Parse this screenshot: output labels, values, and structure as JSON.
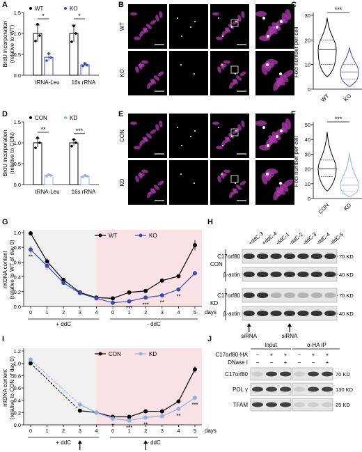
{
  "panel_letters": [
    "A",
    "B",
    "C",
    "D",
    "E",
    "F",
    "G",
    "H",
    "I",
    "J"
  ],
  "colors": {
    "black": "#000000",
    "blue": "#3a49b3",
    "lightblue": "#8fb0e6",
    "magenta": "#b03ab0",
    "yellow": "#d9c21a",
    "grey_bg": "#f0f0f0",
    "pink_bg": "#f8e2e6"
  },
  "chart_data": [
    {
      "id": "A",
      "type": "bar",
      "ylabel": "BrdU incorporation\n(relative to WT)",
      "categories": [
        "tRNA-Leu",
        "16s rRNA"
      ],
      "ylim": [
        0,
        1.5
      ],
      "yticks": [
        "0.0",
        "0.5",
        "1.0",
        "1.5"
      ],
      "series": [
        {
          "name": "WT",
          "values": [
            1.0,
            1.0
          ],
          "errors": [
            0.2,
            0.2
          ],
          "points": [
            [
              0.82,
              1.22,
              0.95
            ],
            [
              0.8,
              1.18,
              1.0
            ]
          ]
        },
        {
          "name": "KO",
          "values": [
            0.43,
            0.25
          ],
          "errors": [
            0.08,
            0.04
          ],
          "points": [
            [
              0.35,
              0.52,
              0.42
            ],
            [
              0.22,
              0.28,
              0.24
            ]
          ]
        }
      ],
      "significance": [
        "*",
        "*"
      ]
    },
    {
      "id": "C",
      "type": "violin",
      "ylabel": "Foci number per cell",
      "categories": [
        "WT",
        "KO"
      ],
      "ylim": [
        0,
        30
      ],
      "yticks": [
        "0",
        "10",
        "20",
        "30"
      ],
      "medians": [
        16,
        7
      ],
      "q1": [
        10,
        4
      ],
      "q3": [
        20,
        10
      ],
      "max": [
        29,
        17
      ],
      "min": [
        5,
        1
      ],
      "significance": "***"
    },
    {
      "id": "D",
      "type": "bar",
      "ylabel": "BrdU incorporation\n(relative to CON)",
      "categories": [
        "tRNA-Leu",
        "16s rRNA"
      ],
      "ylim": [
        0,
        1.5
      ],
      "yticks": [
        "0.0",
        "0.5",
        "1.0",
        "1.5"
      ],
      "series": [
        {
          "name": "CON",
          "values": [
            1.0,
            1.0
          ],
          "errors": [
            0.1,
            0.07
          ],
          "points": [
            [
              0.88,
              1.12,
              1.0
            ],
            [
              0.92,
              1.08,
              1.0
            ]
          ]
        },
        {
          "name": "KD",
          "values": [
            0.22,
            0.2
          ],
          "errors": [
            0.02,
            0.02
          ],
          "points": [
            [
              0.2,
              0.24,
              0.22
            ],
            [
              0.18,
              0.22,
              0.2
            ]
          ]
        }
      ],
      "significance": [
        "**",
        "***"
      ]
    },
    {
      "id": "F",
      "type": "violin",
      "ylabel": "Foci number per cell",
      "categories": [
        "CON",
        "KD"
      ],
      "ylim": [
        0,
        50
      ],
      "yticks": [
        "0",
        "10",
        "20",
        "30",
        "40",
        "50"
      ],
      "medians": [
        20,
        9
      ],
      "q1": [
        15,
        5
      ],
      "q3": [
        26,
        14
      ],
      "max": [
        45,
        31
      ],
      "min": [
        5,
        1
      ],
      "significance": "***"
    },
    {
      "id": "G",
      "type": "line",
      "ylabel": "mtDNA content\n(relative to WT of day 0)",
      "x": [
        "0",
        "1",
        "2",
        "3",
        "4",
        "0",
        "1",
        "2",
        "3",
        "4",
        "5"
      ],
      "xlabel": "days",
      "ylim": [
        0,
        1.0
      ],
      "yticks": [
        "0.0",
        "0.2",
        "0.4",
        "0.6",
        "0.8",
        "1.0"
      ],
      "series": [
        {
          "name": "WT",
          "values": [
            0.99,
            0.61,
            0.36,
            0.19,
            0.12,
            0.11,
            0.19,
            0.21,
            0.35,
            0.41,
            0.83
          ],
          "errors": [
            0,
            0.04,
            0.02,
            0.02,
            0.01,
            0.01,
            0.02,
            0.01,
            0.02,
            0.02,
            0.07
          ]
        },
        {
          "name": "KO",
          "values": [
            0.77,
            0.55,
            0.32,
            0.18,
            0.11,
            0.05,
            0.07,
            0.12,
            0.15,
            0.23,
            0.45
          ],
          "errors": [
            0.05,
            0.05,
            0.02,
            0.02,
            0.01,
            0.01,
            0.01,
            0.01,
            0.01,
            0.02,
            0.03
          ]
        }
      ],
      "significance": [
        "**",
        "",
        "",
        "",
        "",
        "",
        "***",
        "***",
        "**",
        "**"
      ],
      "regions": [
        "+ ddC",
        "- ddC"
      ]
    },
    {
      "id": "I",
      "type": "line",
      "ylabel": "mtDNA content\n(relative to CON of day 0)",
      "x": [
        "0",
        "1",
        "2",
        "3",
        "4",
        "0",
        "1",
        "2",
        "3",
        "4",
        "5"
      ],
      "xlabel": "days",
      "ylim": [
        0,
        1.2
      ],
      "yticks": [
        "0.0",
        "0.2",
        "0.4",
        "0.6",
        "0.8",
        "1.0",
        "1.2"
      ],
      "series": [
        {
          "name": "CON",
          "values": [
            1.0,
            0.0,
            0.0,
            0.23,
            0.2,
            0.13,
            0.13,
            0.22,
            0.22,
            0.38,
            0.9
          ],
          "errors": [
            0.03,
            0,
            0,
            0.02,
            0.01,
            0.01,
            0.01,
            0.02,
            0.01,
            0.02,
            0.05
          ]
        },
        {
          "name": "KD",
          "values": [
            1.06,
            0.0,
            0.0,
            0.33,
            0.2,
            0.1,
            0.07,
            0.12,
            0.14,
            0.26,
            0.44
          ],
          "errors": [
            0.04,
            0,
            0,
            0.02,
            0.01,
            0.01,
            0.01,
            0.01,
            0.01,
            0.02,
            0.02
          ]
        }
      ],
      "significance": [
        "*",
        "***",
        "**",
        "**",
        "***"
      ],
      "regions": [
        "+ ddC",
        "- ddC"
      ],
      "arrows": [
        "siRNA",
        "siRNA"
      ]
    }
  ],
  "panelB": {
    "labels": [
      "Mitotracker",
      "EdU",
      "Merge",
      "Zoom in"
    ],
    "rows": [
      "WT",
      "KO"
    ]
  },
  "panelE": {
    "labels": [
      "Mitotracker",
      "EdU",
      "Merge",
      "Zoom in"
    ],
    "rows": [
      "CON",
      "KD"
    ]
  },
  "panelH": {
    "lanes": [
      "+ddC-3",
      "+ddC-4",
      "-ddC-1",
      "-ddC-2",
      "-ddC-3",
      "-ddC-4",
      "-ddC-5"
    ],
    "groups": [
      "CON",
      "KD"
    ],
    "bands": [
      "C17orf80",
      "β-actin"
    ],
    "mw": [
      "70 KD",
      "40 KD"
    ],
    "arrow": "siRNA"
  },
  "panelJ": {
    "input_label": "Input",
    "ip_label": "α-HA IP",
    "rows": [
      "C17orf80-HA",
      "DNase I"
    ],
    "signs_c": [
      "−",
      "+",
      "+"
    ],
    "signs_d": [
      "−",
      "−",
      "+"
    ],
    "bands": [
      "C17orf80",
      "POL γ",
      "TFAM"
    ],
    "mw": [
      "70 KD",
      "130 KD",
      "25 KD"
    ]
  }
}
